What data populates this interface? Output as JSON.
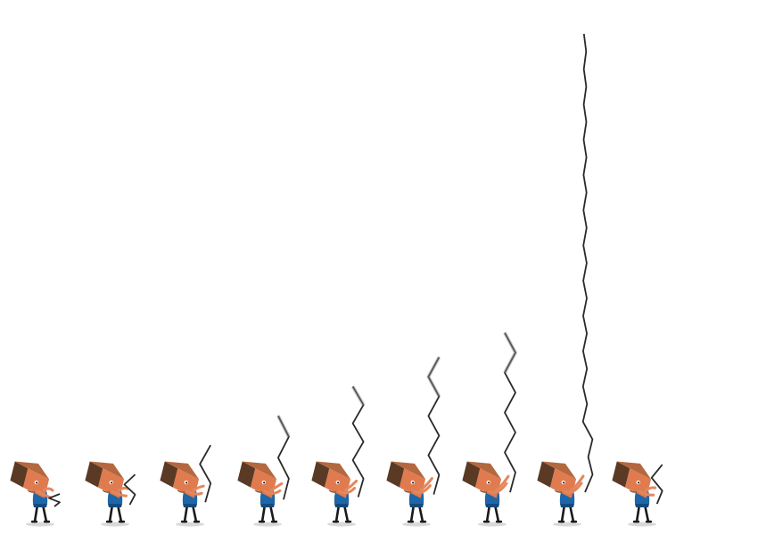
{
  "sprite_sheet": {
    "frame_count": 9,
    "background": "#ffffff",
    "colors": {
      "head_front": "#e07a4f",
      "head_side": "#5a3a24",
      "head_top": "#b4683f",
      "eye": "#ffffff",
      "pupil": "#1b1b1b",
      "body": "#1f66a8",
      "body_dark": "#154a7c",
      "arm": "#e3875d",
      "legs": "#1a1a1a",
      "shadow": "#d9d9d9",
      "rope": "#2a2a2a",
      "rope_fade": "#8c8c8c"
    },
    "frames": [
      {
        "name": "frame-1",
        "rope_level": 0.0
      },
      {
        "name": "frame-2",
        "rope_level": 0.04
      },
      {
        "name": "frame-3",
        "rope_level": 0.1
      },
      {
        "name": "frame-4",
        "rope_level": 0.16
      },
      {
        "name": "frame-5",
        "rope_level": 0.22
      },
      {
        "name": "frame-6",
        "rope_level": 0.28
      },
      {
        "name": "frame-7",
        "rope_level": 0.33
      },
      {
        "name": "frame-8",
        "rope_level": 1.0
      },
      {
        "name": "frame-9",
        "rope_level": 0.06
      }
    ]
  }
}
